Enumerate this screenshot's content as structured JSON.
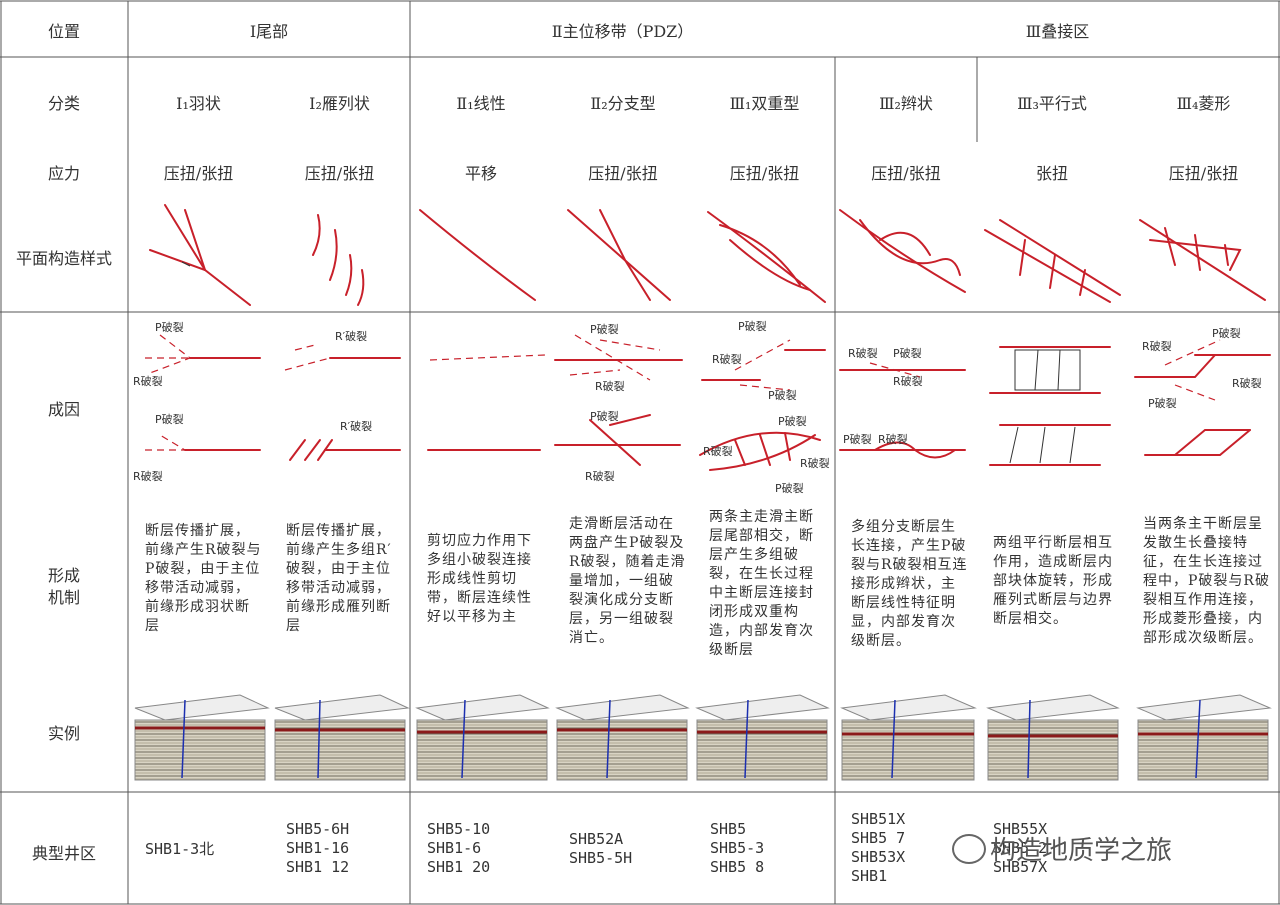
{
  "header": {
    "position_label": "位置",
    "zone_I": "Ⅰ尾部",
    "zone_II": "Ⅱ主位移带（PDZ）",
    "zone_III": "Ⅲ叠接区"
  },
  "rows": {
    "classification": "分类",
    "stress": "应力",
    "plan_style": "平面构造样式",
    "genesis": "成因",
    "mechanism": "形成机制",
    "example": "实例",
    "typical_wells": "典型井区"
  },
  "columns": [
    {
      "class_label": "Ⅰ₁羽状",
      "stress": "压扭/张扭",
      "mechanism": "断层传播扩展，前缘产生R破裂与P破裂，由于主位移带活动减弱，前缘形成羽状断层",
      "wells": "SHB1-3北"
    },
    {
      "class_label": "Ⅰ₂雁列状",
      "stress": "压扭/张扭",
      "mechanism": "断层传播扩展，前缘产生多组R′破裂，由于主位移带活动减弱，前缘形成雁列断层",
      "wells": "SHB5-6H\nSHB1-16\nSHB1 12"
    },
    {
      "class_label": "Ⅱ₁线性",
      "stress": "平移",
      "mechanism": "剪切应力作用下多组小破裂连接形成线性剪切带，断层连续性好以平移为主",
      "wells": "SHB5-10\nSHB1-6\nSHB1 20"
    },
    {
      "class_label": "Ⅱ₂分支型",
      "stress": "压扭/张扭",
      "mechanism": "走滑断层活动在两盘产生P破裂及R破裂，随着走滑量增加，一组破裂演化成分支断层，另一组破裂消亡。",
      "wells": "SHB52A\nSHB5-5H"
    },
    {
      "class_label": "Ⅲ₁双重型",
      "stress": "压扭/张扭",
      "mechanism": "两条主走滑主断层尾部相交，断层产生多组破裂，在生长过程中主断层连接封闭形成双重构造，内部发育次级断层",
      "wells": "SHB5\nSHB5-3\nSHB5 8"
    },
    {
      "class_label": "Ⅲ₂辫状",
      "stress": "压扭/张扭",
      "mechanism": "多组分支断层生长连接，产生P破裂与R破裂相互连接形成辫状，主断层线性特征明显，内部发育次级断层。",
      "wells": "SHB51X\nSHB5 7\nSHB53X\nSHB1"
    },
    {
      "class_label": "Ⅲ₃平行式",
      "stress": "张扭",
      "mechanism": "两组平行断层相互作用，造成断层内部块体旋转，形成雁列式断层与边界断层相交。",
      "wells": "SHB55X\nSHB5 2\nSHB57X"
    },
    {
      "class_label": "Ⅲ₄菱形",
      "stress": "压扭/张扭",
      "mechanism": "当两条主干断层呈发散生长叠接特征，在生长连接过程中，P破裂与R破裂相互作用连接，形成菱形叠接，内部形成次级断层。",
      "wells": ""
    }
  ],
  "fracture_labels": {
    "p": "P破裂",
    "r": "R破裂",
    "rp": "R′破裂"
  },
  "watermark": "构造地质学之旅",
  "colors": {
    "fault": "#c8202a",
    "grid": "#555555"
  }
}
